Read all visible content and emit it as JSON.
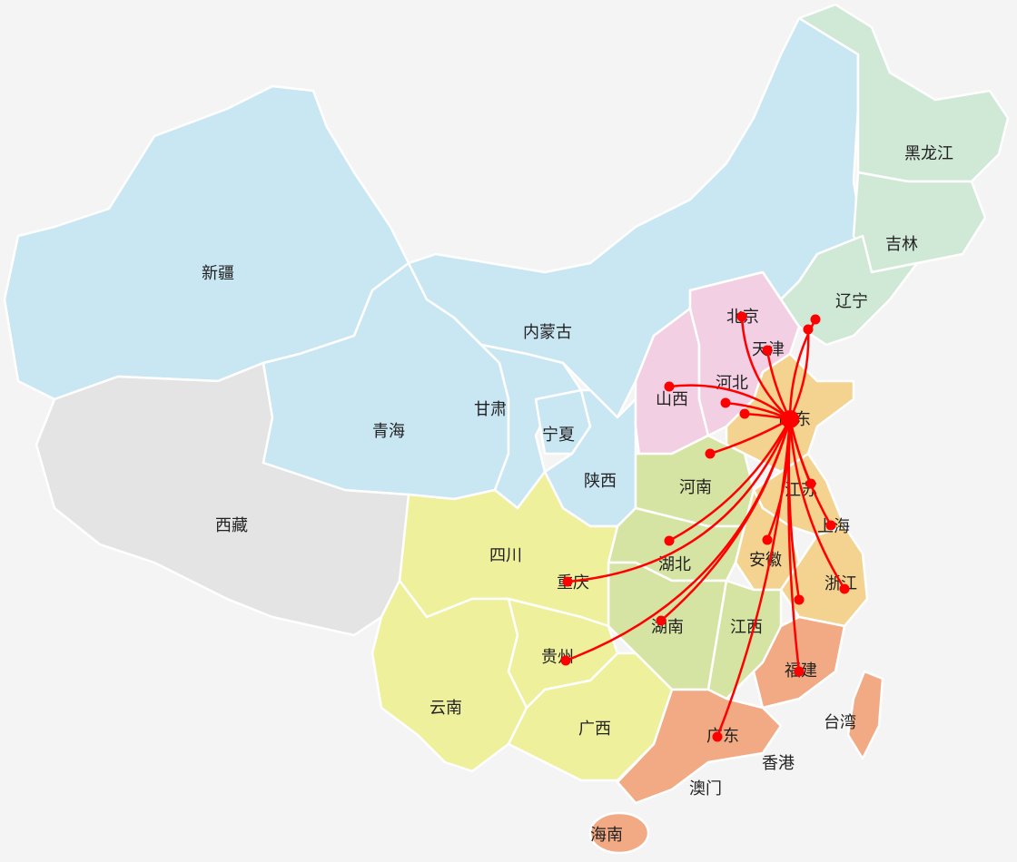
{
  "colors": {
    "northwest": "#c9e6f3",
    "tibet": "#e4e4e4",
    "southwest": "#eef09c",
    "central": "#d5e3a3",
    "north": "#f2cfe2",
    "east": "#f4d28f",
    "south": "#f1aa84",
    "northeast": "#d0e8d6",
    "route": "#ff0000"
  },
  "labels": {
    "xinjiang": "新疆",
    "xizang": "西藏",
    "qinghai": "青海",
    "gansu": "甘肃",
    "ningxia": "宁夏",
    "neimenggu": "内蒙古",
    "shaanxi": "陕西",
    "heilongjiang": "黑龙江",
    "jilin": "吉林",
    "liaoning": "辽宁",
    "beijing": "北京",
    "tianjin": "天津",
    "hebei": "河北",
    "shanxi": "山西",
    "shandong": "山东",
    "henan": "河南",
    "jiangsu": "江苏",
    "shanghai": "上海",
    "anhui": "安徽",
    "zhejiang": "浙江",
    "hubei": "湖北",
    "hunan": "湖南",
    "jiangxi": "江西",
    "fujian": "福建",
    "taiwan": "台湾",
    "guangdong": "广东",
    "xianggang": "香港",
    "aomen": "澳门",
    "hainan": "海南",
    "guangxi": "广西",
    "guizhou": "贵州",
    "yunnan": "云南",
    "sichuan": "四川",
    "chongqing": "重庆"
  }
}
